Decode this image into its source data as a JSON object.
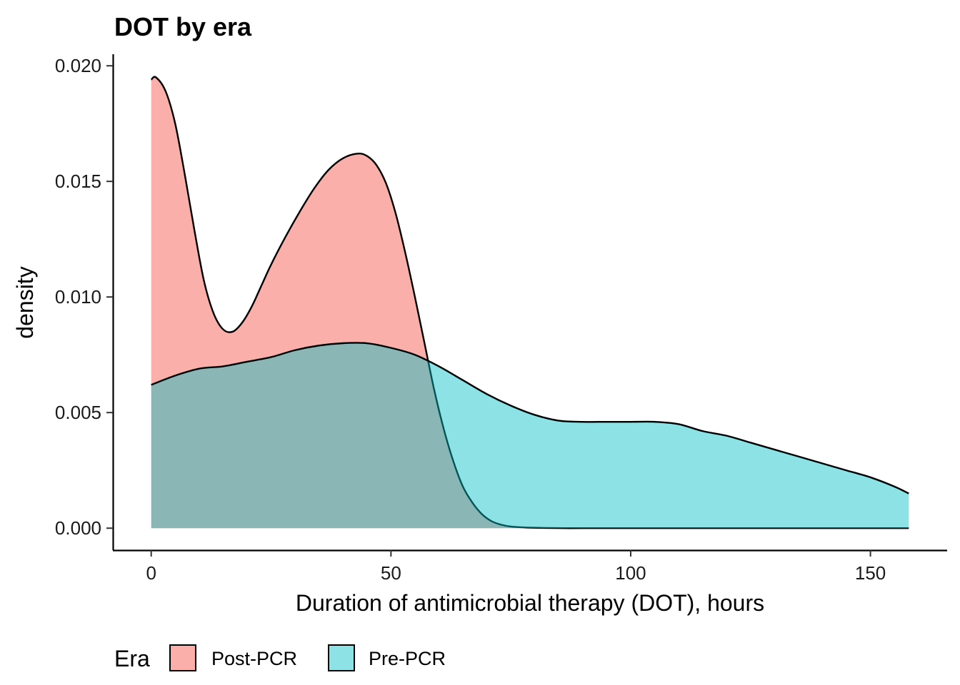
{
  "chart_data": {
    "type": "area",
    "title": "DOT by era",
    "xlabel": "Duration of antimicrobial therapy (DOT), hours",
    "ylabel": "density",
    "xlim": [
      -8,
      166
    ],
    "ylim": [
      -0.00095,
      0.0205
    ],
    "x_ticks": [
      0,
      50,
      100,
      150
    ],
    "x_tick_labels": [
      "0",
      "50",
      "100",
      "150"
    ],
    "y_ticks": [
      0,
      0.005,
      0.01,
      0.015,
      0.02
    ],
    "y_tick_labels": [
      "0.000",
      "0.005",
      "0.010",
      "0.015",
      "0.020"
    ],
    "grid": false,
    "legend": {
      "title": "Era",
      "position": "bottom-left",
      "orientation": "horizontal"
    },
    "series": [
      {
        "name": "Post-PCR",
        "fill": "#F8766D",
        "fill_opacity": 0.58,
        "x": [
          0,
          1,
          3,
          5,
          7,
          9,
          11,
          13,
          15,
          17,
          19,
          21,
          23,
          25,
          28,
          31,
          34,
          37,
          40,
          43,
          45,
          47,
          49,
          51,
          53,
          55,
          57,
          59,
          61,
          63,
          65,
          67,
          69,
          71,
          73,
          75,
          78,
          82,
          86,
          90,
          100,
          120,
          140,
          158
        ],
        "y": [
          0.0194,
          0.0195,
          0.0189,
          0.0175,
          0.0153,
          0.0129,
          0.0107,
          0.0093,
          0.0086,
          0.0085,
          0.0089,
          0.0096,
          0.0105,
          0.0114,
          0.0126,
          0.0137,
          0.0147,
          0.0155,
          0.016,
          0.0162,
          0.0161,
          0.0157,
          0.0149,
          0.0136,
          0.0119,
          0.01,
          0.008,
          0.006,
          0.0043,
          0.0029,
          0.0018,
          0.0011,
          0.0006,
          0.0003,
          0.00015,
          7e-05,
          3e-05,
          1e-05,
          0.0,
          0.0,
          0.0,
          0.0,
          0.0,
          0.0
        ]
      },
      {
        "name": "Pre-PCR",
        "fill": "#00BFC4",
        "fill_opacity": 0.45,
        "x": [
          0,
          5,
          10,
          15,
          20,
          25,
          30,
          35,
          40,
          45,
          50,
          55,
          60,
          65,
          70,
          75,
          80,
          85,
          90,
          95,
          100,
          105,
          110,
          115,
          120,
          125,
          130,
          135,
          140,
          145,
          150,
          155,
          158
        ],
        "y": [
          0.0062,
          0.0066,
          0.0069,
          0.007,
          0.0072,
          0.0074,
          0.0077,
          0.0079,
          0.008,
          0.008,
          0.0078,
          0.0075,
          0.007,
          0.0064,
          0.0058,
          0.0053,
          0.0049,
          0.00465,
          0.0046,
          0.0046,
          0.0046,
          0.0046,
          0.0045,
          0.0042,
          0.004,
          0.0037,
          0.0034,
          0.0031,
          0.0028,
          0.0025,
          0.0022,
          0.0018,
          0.0015
        ]
      }
    ]
  }
}
